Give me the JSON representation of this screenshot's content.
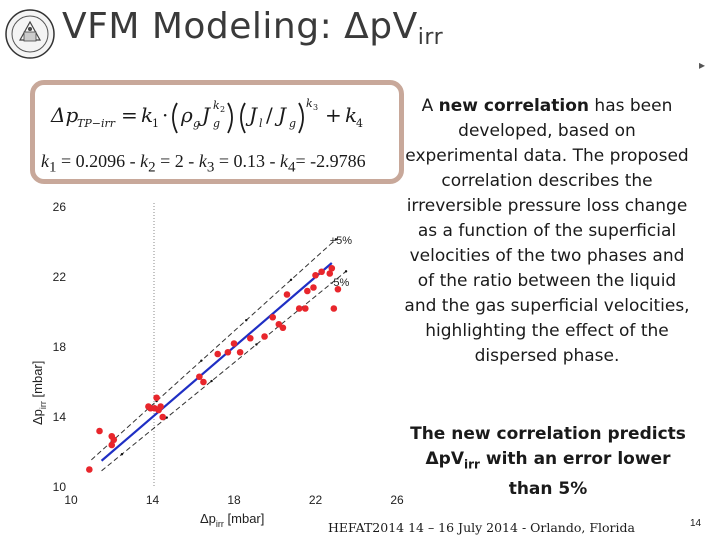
{
  "title": {
    "main": "VFM Modeling: Δp",
    "v": "V",
    "sub": "irr"
  },
  "formula": {
    "equation_text": "Δp_TP−irr = k1·(ρg Jg^k2)(Jl/Jg)^k3 + k4",
    "coeffs": {
      "k1_label": "k",
      "k1_sub": "1",
      "k1_val": " = 0.2096 - ",
      "k2_label": "k",
      "k2_sub": "2",
      "k2_val": " = 2 - ",
      "k3_label": "k",
      "k3_sub": "3",
      "k3_val": " = 0.13 - ",
      "k4_label": "k",
      "k4_sub": "4",
      "k4_val": "= -2.9786"
    }
  },
  "description": "A new correlation has been developed, based on experimental data. The proposed correlation describes the irreversible pressure loss change as a function of the superficial velocities of the two phases and of the ratio between the liquid and the gas superficial velocities, highlighting the effect of the dispersed phase.",
  "description_bold_phrase": "new correlation",
  "conclusion": {
    "line1": "The new correlation predicts",
    "line2_main": "Δp",
    "line2_v": "V",
    "line2_sub": "irr",
    "line2_rest": " with an error lower",
    "line3": "than 5%"
  },
  "footer": "HEFAT2014 14 – 16 July 2014 - Orlando, Florida",
  "page_number": "14",
  "colors": {
    "accent_border": "#c8a89a",
    "points": "#e8262c",
    "fit_line": "#1f2fc4",
    "bound_line": "#333333"
  },
  "chart_data": {
    "type": "scatter",
    "title": "",
    "xlabel_main": "Δp",
    "xlabel_sub": "irr",
    "xlabel_unit": " [mbar]",
    "ylabel_main": "Δp",
    "ylabel_sub": "irr",
    "ylabel_unit": " [mbar]",
    "xlim": [
      10,
      26
    ],
    "ylim": [
      10,
      26
    ],
    "xticks": [
      10,
      14,
      18,
      22,
      26
    ],
    "yticks": [
      10,
      14,
      18,
      22,
      26
    ],
    "grid": false,
    "annotations": [
      {
        "text": "+5%",
        "x": 22.7,
        "y": 23.9
      },
      {
        "text": "-5%",
        "x": 22.7,
        "y": 21.5
      }
    ],
    "bounds": [
      {
        "name": "+5%",
        "factor": 1.05,
        "x_range": [
          11.0,
          23.0
        ]
      },
      {
        "name": "-5%",
        "factor": 0.95,
        "x_range": [
          11.5,
          23.5
        ]
      }
    ],
    "fit_line": {
      "x": [
        11.5,
        22.8
      ],
      "y": [
        11.5,
        22.8
      ]
    },
    "points": [
      {
        "x": 10.9,
        "y": 11.0
      },
      {
        "x": 11.4,
        "y": 13.2
      },
      {
        "x": 12.0,
        "y": 12.4
      },
      {
        "x": 12.1,
        "y": 12.7
      },
      {
        "x": 12.0,
        "y": 12.9
      },
      {
        "x": 13.8,
        "y": 14.6
      },
      {
        "x": 13.9,
        "y": 14.5
      },
      {
        "x": 14.1,
        "y": 14.5
      },
      {
        "x": 14.2,
        "y": 15.1
      },
      {
        "x": 14.3,
        "y": 14.4
      },
      {
        "x": 14.4,
        "y": 14.6
      },
      {
        "x": 14.5,
        "y": 14.0
      },
      {
        "x": 16.3,
        "y": 16.3
      },
      {
        "x": 16.5,
        "y": 16.0
      },
      {
        "x": 17.2,
        "y": 17.6
      },
      {
        "x": 17.7,
        "y": 17.7
      },
      {
        "x": 18.0,
        "y": 18.2
      },
      {
        "x": 18.3,
        "y": 17.7
      },
      {
        "x": 18.8,
        "y": 18.5
      },
      {
        "x": 19.5,
        "y": 18.6
      },
      {
        "x": 20.2,
        "y": 19.3
      },
      {
        "x": 20.4,
        "y": 19.1
      },
      {
        "x": 21.2,
        "y": 20.2
      },
      {
        "x": 21.5,
        "y": 20.2
      },
      {
        "x": 20.6,
        "y": 21.0
      },
      {
        "x": 21.6,
        "y": 21.2
      },
      {
        "x": 21.9,
        "y": 21.4
      },
      {
        "x": 22.0,
        "y": 22.1
      },
      {
        "x": 22.3,
        "y": 22.3
      },
      {
        "x": 22.7,
        "y": 22.2
      },
      {
        "x": 22.8,
        "y": 22.5
      },
      {
        "x": 23.1,
        "y": 21.3
      },
      {
        "x": 22.9,
        "y": 20.2
      },
      {
        "x": 19.9,
        "y": 19.7
      }
    ]
  }
}
